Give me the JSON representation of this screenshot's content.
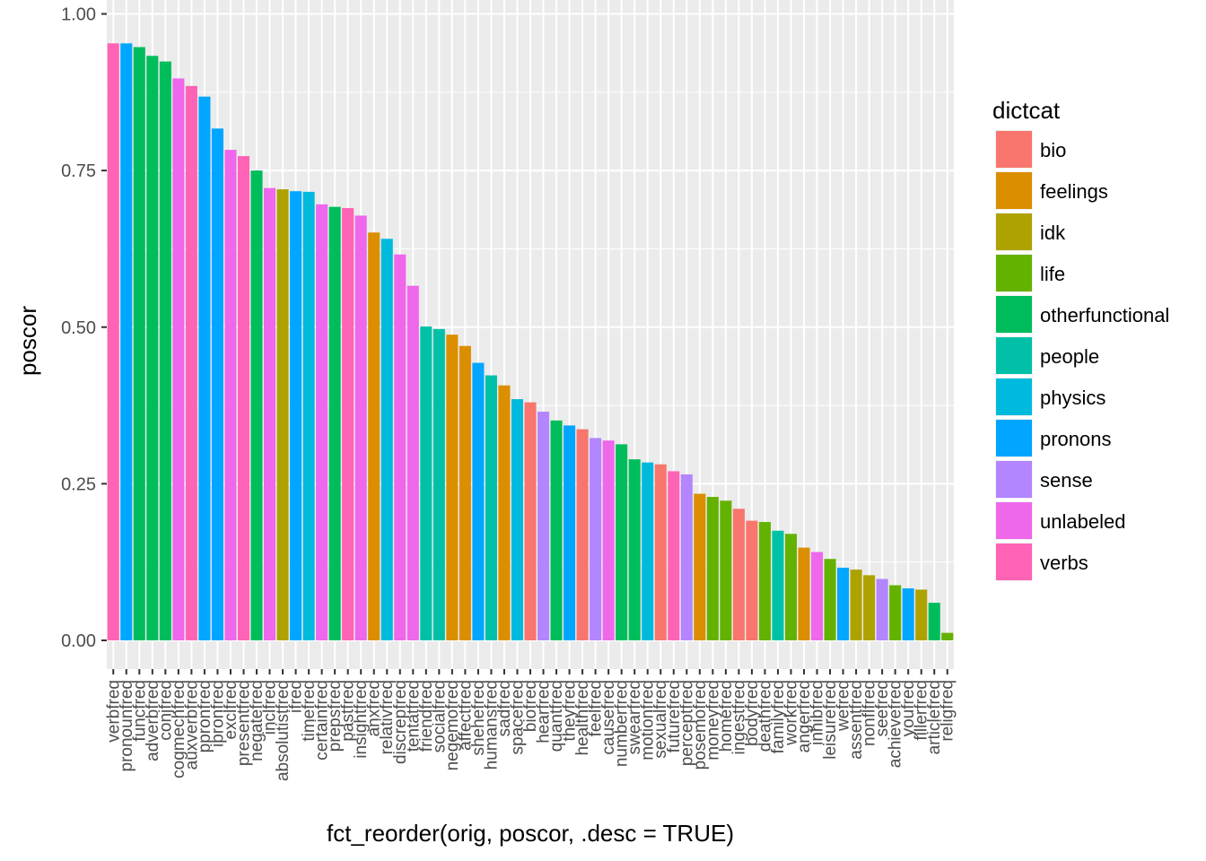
{
  "chart_data": {
    "type": "bar",
    "xlabel": "fct_reorder(orig, poscor, .desc = TRUE)",
    "ylabel": "poscor",
    "ylim": [
      -0.044,
      1.0
    ],
    "yticks": [
      0.0,
      0.25,
      0.5,
      0.75,
      1.0
    ],
    "ytick_labels": [
      "0.00",
      "0.25",
      "0.50",
      "0.75",
      "1.00"
    ],
    "grid": true,
    "legend_position": "right",
    "legend_title": "dictcat",
    "legend": [
      {
        "name": "bio",
        "color": "#F8766D"
      },
      {
        "name": "feelings",
        "color": "#DB8E00"
      },
      {
        "name": "idk",
        "color": "#AEA200"
      },
      {
        "name": "life",
        "color": "#64B200"
      },
      {
        "name": "otherfunctional",
        "color": "#00BD5C"
      },
      {
        "name": "people",
        "color": "#00C1A7"
      },
      {
        "name": "physics",
        "color": "#00BADE"
      },
      {
        "name": "pronons",
        "color": "#00A6FF"
      },
      {
        "name": "sense",
        "color": "#B385FF"
      },
      {
        "name": "unlabeled",
        "color": "#EF67EB"
      },
      {
        "name": "verbs",
        "color": "#FF63B6"
      }
    ],
    "bars": [
      {
        "label": "verbfreq",
        "value": 0.953,
        "cat": "verbs"
      },
      {
        "label": "pronounfreq",
        "value": 0.953,
        "cat": "pronons"
      },
      {
        "label": "funcfreq",
        "value": 0.947,
        "cat": "otherfunctional"
      },
      {
        "label": "adverbfreq",
        "value": 0.933,
        "cat": "otherfunctional"
      },
      {
        "label": "conjfreq",
        "value": 0.924,
        "cat": "otherfunctional"
      },
      {
        "label": "cogmechfreq",
        "value": 0.897,
        "cat": "unlabeled"
      },
      {
        "label": "auxverbfreq",
        "value": 0.885,
        "cat": "verbs"
      },
      {
        "label": "ppronfreq",
        "value": 0.868,
        "cat": "pronons"
      },
      {
        "label": "ipronfreq",
        "value": 0.817,
        "cat": "pronons"
      },
      {
        "label": "exclfreq",
        "value": 0.783,
        "cat": "unlabeled"
      },
      {
        "label": "presentfreq",
        "value": 0.773,
        "cat": "verbs"
      },
      {
        "label": "negatefreq",
        "value": 0.75,
        "cat": "otherfunctional"
      },
      {
        "label": "inclfreq",
        "value": 0.722,
        "cat": "unlabeled"
      },
      {
        "label": "absolutistfreq",
        "value": 0.72,
        "cat": "idk"
      },
      {
        "label": "ifreq",
        "value": 0.717,
        "cat": "pronons"
      },
      {
        "label": "timefreq",
        "value": 0.716,
        "cat": "physics"
      },
      {
        "label": "certainfreq",
        "value": 0.696,
        "cat": "unlabeled"
      },
      {
        "label": "prepsfreq",
        "value": 0.692,
        "cat": "otherfunctional"
      },
      {
        "label": "pastfreq",
        "value": 0.69,
        "cat": "verbs"
      },
      {
        "label": "insightfreq",
        "value": 0.678,
        "cat": "unlabeled"
      },
      {
        "label": "anxfreq",
        "value": 0.651,
        "cat": "feelings"
      },
      {
        "label": "relativfreq",
        "value": 0.641,
        "cat": "physics"
      },
      {
        "label": "discrepfreq",
        "value": 0.616,
        "cat": "unlabeled"
      },
      {
        "label": "tentatfreq",
        "value": 0.566,
        "cat": "unlabeled"
      },
      {
        "label": "friendfreq",
        "value": 0.501,
        "cat": "people"
      },
      {
        "label": "socialfreq",
        "value": 0.497,
        "cat": "people"
      },
      {
        "label": "negemofreq",
        "value": 0.488,
        "cat": "feelings"
      },
      {
        "label": "affectfreq",
        "value": 0.47,
        "cat": "feelings"
      },
      {
        "label": "shehefreq",
        "value": 0.443,
        "cat": "pronons"
      },
      {
        "label": "humansfreq",
        "value": 0.423,
        "cat": "people"
      },
      {
        "label": "sadfreq",
        "value": 0.407,
        "cat": "feelings"
      },
      {
        "label": "spacefreq",
        "value": 0.385,
        "cat": "physics"
      },
      {
        "label": "biofreq",
        "value": 0.38,
        "cat": "bio"
      },
      {
        "label": "hearfreq",
        "value": 0.365,
        "cat": "sense"
      },
      {
        "label": "quantfreq",
        "value": 0.351,
        "cat": "otherfunctional"
      },
      {
        "label": "theyfreq",
        "value": 0.343,
        "cat": "pronons"
      },
      {
        "label": "healthfreq",
        "value": 0.337,
        "cat": "bio"
      },
      {
        "label": "feelfreq",
        "value": 0.323,
        "cat": "sense"
      },
      {
        "label": "causefreq",
        "value": 0.319,
        "cat": "unlabeled"
      },
      {
        "label": "numberfreq",
        "value": 0.313,
        "cat": "otherfunctional"
      },
      {
        "label": "swearfreq",
        "value": 0.289,
        "cat": "otherfunctional"
      },
      {
        "label": "motionfreq",
        "value": 0.284,
        "cat": "physics"
      },
      {
        "label": "sexualfreq",
        "value": 0.281,
        "cat": "bio"
      },
      {
        "label": "futurefreq",
        "value": 0.27,
        "cat": "verbs"
      },
      {
        "label": "perceptfreq",
        "value": 0.265,
        "cat": "sense"
      },
      {
        "label": "posemofreq",
        "value": 0.234,
        "cat": "feelings"
      },
      {
        "label": "moneyfreq",
        "value": 0.229,
        "cat": "life"
      },
      {
        "label": "homefreq",
        "value": 0.223,
        "cat": "life"
      },
      {
        "label": "ingestfreq",
        "value": 0.21,
        "cat": "bio"
      },
      {
        "label": "bodyfreq",
        "value": 0.191,
        "cat": "bio"
      },
      {
        "label": "deathfreq",
        "value": 0.189,
        "cat": "life"
      },
      {
        "label": "familyfreq",
        "value": 0.175,
        "cat": "people"
      },
      {
        "label": "workfreq",
        "value": 0.17,
        "cat": "life"
      },
      {
        "label": "angerfreq",
        "value": 0.148,
        "cat": "feelings"
      },
      {
        "label": "inhibfreq",
        "value": 0.141,
        "cat": "unlabeled"
      },
      {
        "label": "leisurefreq",
        "value": 0.13,
        "cat": "life"
      },
      {
        "label": "wefreq",
        "value": 0.116,
        "cat": "pronons"
      },
      {
        "label": "assentfreq",
        "value": 0.113,
        "cat": "idk"
      },
      {
        "label": "nonflfreq",
        "value": 0.104,
        "cat": "idk"
      },
      {
        "label": "seefreq",
        "value": 0.098,
        "cat": "sense"
      },
      {
        "label": "achievefreq",
        "value": 0.088,
        "cat": "life"
      },
      {
        "label": "youfreq",
        "value": 0.083,
        "cat": "pronons"
      },
      {
        "label": "fillerfreq",
        "value": 0.081,
        "cat": "idk"
      },
      {
        "label": "articlefreq",
        "value": 0.06,
        "cat": "otherfunctional"
      },
      {
        "label": "religfreq",
        "value": 0.012,
        "cat": "life"
      }
    ]
  }
}
